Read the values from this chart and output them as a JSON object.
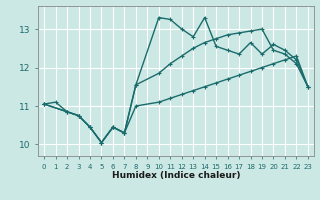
{
  "xlabel": "Humidex (Indice chaleur)",
  "bg_color": "#cce8e4",
  "line_color": "#1a6b6b",
  "grid_color": "#ffffff",
  "xlim": [
    -0.5,
    23.5
  ],
  "ylim": [
    9.7,
    13.6
  ],
  "xticks": [
    0,
    1,
    2,
    3,
    4,
    5,
    6,
    7,
    8,
    9,
    10,
    11,
    12,
    13,
    14,
    15,
    16,
    17,
    18,
    19,
    20,
    21,
    22,
    23
  ],
  "yticks": [
    10,
    11,
    12,
    13
  ],
  "line1_x": [
    0,
    1,
    2,
    3,
    4,
    5,
    6,
    7,
    8,
    10,
    11,
    12,
    13,
    14,
    15,
    16,
    17,
    18,
    19,
    20,
    21,
    22,
    23
  ],
  "line1_y": [
    11.05,
    11.1,
    10.85,
    10.75,
    10.45,
    10.05,
    10.45,
    10.3,
    11.55,
    13.3,
    13.25,
    13.0,
    12.8,
    13.3,
    12.55,
    12.45,
    12.35,
    12.65,
    12.35,
    12.6,
    12.45,
    12.2,
    11.5
  ],
  "line2_x": [
    0,
    2,
    3,
    4,
    5,
    6,
    7,
    8,
    10,
    11,
    12,
    13,
    14,
    15,
    16,
    17,
    18,
    19,
    20,
    21,
    22,
    23
  ],
  "line2_y": [
    11.05,
    10.85,
    10.75,
    10.45,
    10.05,
    10.45,
    10.3,
    11.55,
    11.85,
    12.1,
    12.3,
    12.5,
    12.65,
    12.75,
    12.85,
    12.9,
    12.95,
    13.0,
    12.45,
    12.35,
    12.1,
    11.5
  ],
  "line3_x": [
    0,
    2,
    3,
    4,
    5,
    6,
    7,
    8,
    10,
    11,
    12,
    13,
    14,
    15,
    16,
    17,
    18,
    19,
    20,
    21,
    22,
    23
  ],
  "line3_y": [
    11.05,
    10.85,
    10.75,
    10.45,
    10.05,
    10.45,
    10.3,
    11.0,
    11.1,
    11.2,
    11.3,
    11.4,
    11.5,
    11.6,
    11.7,
    11.8,
    11.9,
    12.0,
    12.1,
    12.2,
    12.3,
    11.5
  ],
  "marker_size": 3,
  "linewidth": 1.0
}
